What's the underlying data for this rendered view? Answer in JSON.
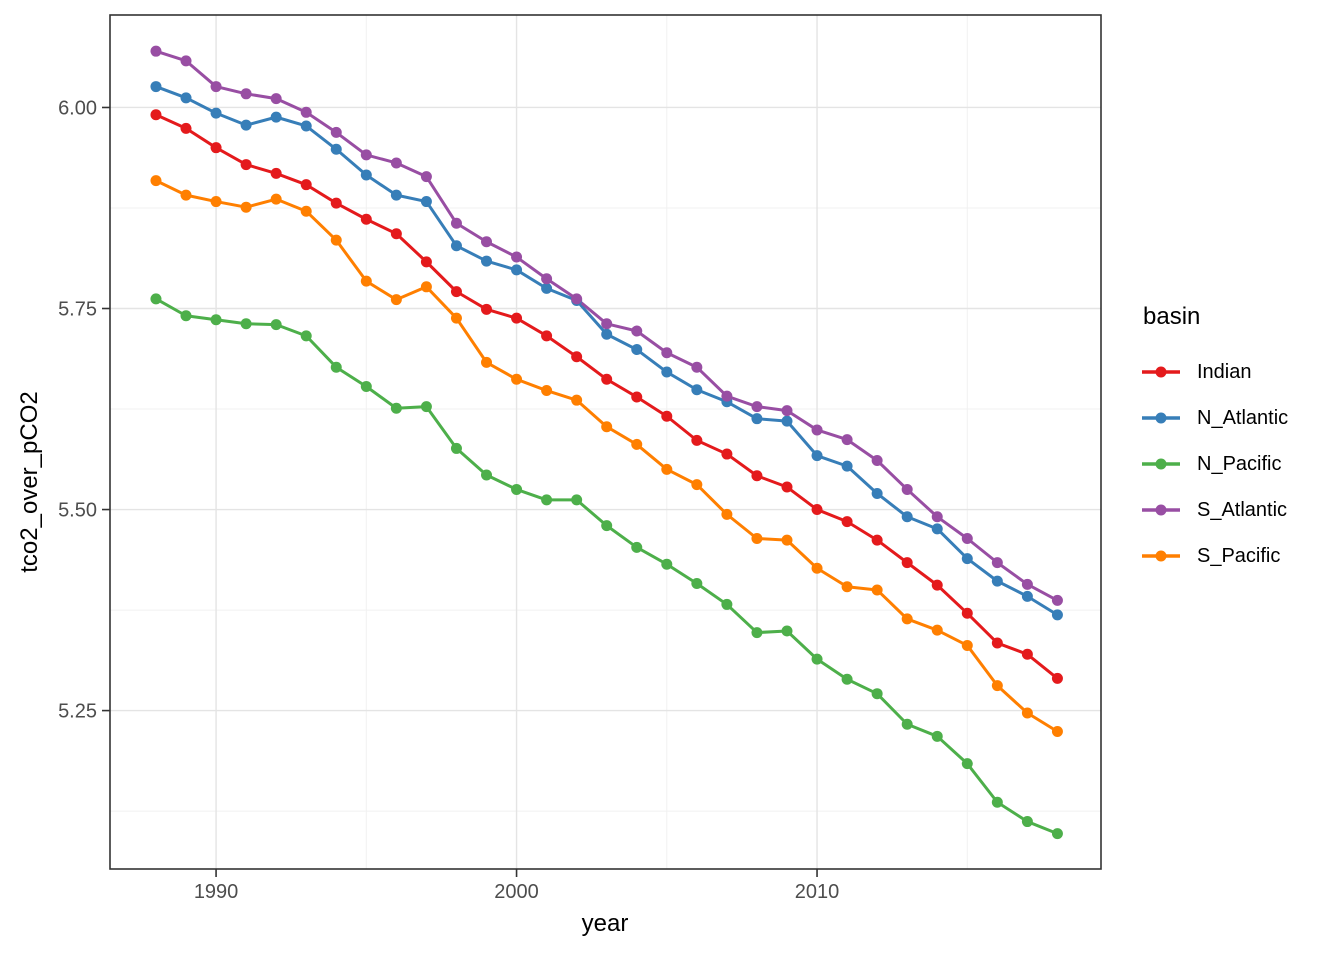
{
  "axes": {
    "x_title": "year",
    "y_title": "tco2_over_pCO2"
  },
  "legend": {
    "title": "basin"
  },
  "style": {
    "background": "#FFFFFF",
    "panel_border": "#333333",
    "grid_major": "#E4E4E4",
    "grid_minor": "#F1F1F1",
    "tick_color": "#333333",
    "tick_label_color": "#4D4D4D",
    "axis_title_color": "#000000"
  },
  "chart_data": {
    "type": "line",
    "title": "",
    "xlabel": "year",
    "ylabel": "tco2_over_pCO2",
    "legend_title": "basin",
    "legend_position": "right",
    "grid": true,
    "marker": "circle",
    "xlim": [
      1986.47,
      2019.45
    ],
    "ylim": [
      5.053,
      6.115
    ],
    "x_major_ticks": [
      {
        "value": 1990,
        "label": "1990"
      },
      {
        "value": 2000,
        "label": "2000"
      },
      {
        "value": 2010,
        "label": "2010"
      }
    ],
    "x_minor_gridlines": [
      1995,
      2005,
      2015
    ],
    "y_major_ticks": [
      {
        "value": 5.25,
        "label": "5.25"
      },
      {
        "value": 5.5,
        "label": "5.50"
      },
      {
        "value": 5.75,
        "label": "5.75"
      },
      {
        "value": 6.0,
        "label": "6.00"
      }
    ],
    "y_minor_gridlines": [
      5.125,
      5.375,
      5.625,
      5.875
    ],
    "x": [
      1988,
      1989,
      1990,
      1991,
      1992,
      1993,
      1994,
      1995,
      1996,
      1997,
      1998,
      1999,
      2000,
      2001,
      2002,
      2003,
      2004,
      2005,
      2006,
      2007,
      2008,
      2009,
      2010,
      2011,
      2012,
      2013,
      2014,
      2015,
      2016,
      2017,
      2018
    ],
    "series": [
      {
        "name": "Indian",
        "color": "#E41A1C",
        "values": [
          5.991,
          5.974,
          5.95,
          5.929,
          5.918,
          5.904,
          5.881,
          5.861,
          5.843,
          5.808,
          5.771,
          5.749,
          5.738,
          5.716,
          5.69,
          5.662,
          5.64,
          5.616,
          5.586,
          5.569,
          5.542,
          5.528,
          5.5,
          5.485,
          5.462,
          5.434,
          5.406,
          5.371,
          5.334,
          5.32,
          5.29
        ]
      },
      {
        "name": "N_Atlantic",
        "color": "#377EB8",
        "values": [
          6.026,
          6.012,
          5.993,
          5.978,
          5.988,
          5.977,
          5.948,
          5.916,
          5.891,
          5.883,
          5.828,
          5.809,
          5.798,
          5.775,
          5.76,
          5.718,
          5.699,
          5.671,
          5.649,
          5.634,
          5.613,
          5.61,
          5.567,
          5.554,
          5.52,
          5.491,
          5.476,
          5.439,
          5.411,
          5.392,
          5.369
        ]
      },
      {
        "name": "N_Pacific",
        "color": "#4DAF4A",
        "values": [
          5.762,
          5.741,
          5.736,
          5.731,
          5.73,
          5.716,
          5.677,
          5.653,
          5.626,
          5.628,
          5.576,
          5.543,
          5.525,
          5.512,
          5.512,
          5.48,
          5.453,
          5.432,
          5.408,
          5.382,
          5.347,
          5.349,
          5.314,
          5.289,
          5.271,
          5.233,
          5.218,
          5.184,
          5.136,
          5.112,
          5.097
        ]
      },
      {
        "name": "S_Atlantic",
        "color": "#984EA3",
        "values": [
          6.07,
          6.058,
          6.026,
          6.017,
          6.011,
          5.994,
          5.969,
          5.941,
          5.931,
          5.914,
          5.856,
          5.833,
          5.814,
          5.787,
          5.762,
          5.731,
          5.722,
          5.695,
          5.677,
          5.641,
          5.628,
          5.623,
          5.599,
          5.587,
          5.561,
          5.525,
          5.491,
          5.464,
          5.434,
          5.407,
          5.387
        ]
      },
      {
        "name": "S_Pacific",
        "color": "#FF7F00",
        "values": [
          5.909,
          5.891,
          5.883,
          5.876,
          5.886,
          5.871,
          5.835,
          5.784,
          5.761,
          5.777,
          5.738,
          5.683,
          5.662,
          5.648,
          5.636,
          5.603,
          5.581,
          5.55,
          5.531,
          5.494,
          5.464,
          5.462,
          5.427,
          5.404,
          5.4,
          5.364,
          5.35,
          5.331,
          5.281,
          5.247,
          5.224
        ]
      }
    ]
  }
}
